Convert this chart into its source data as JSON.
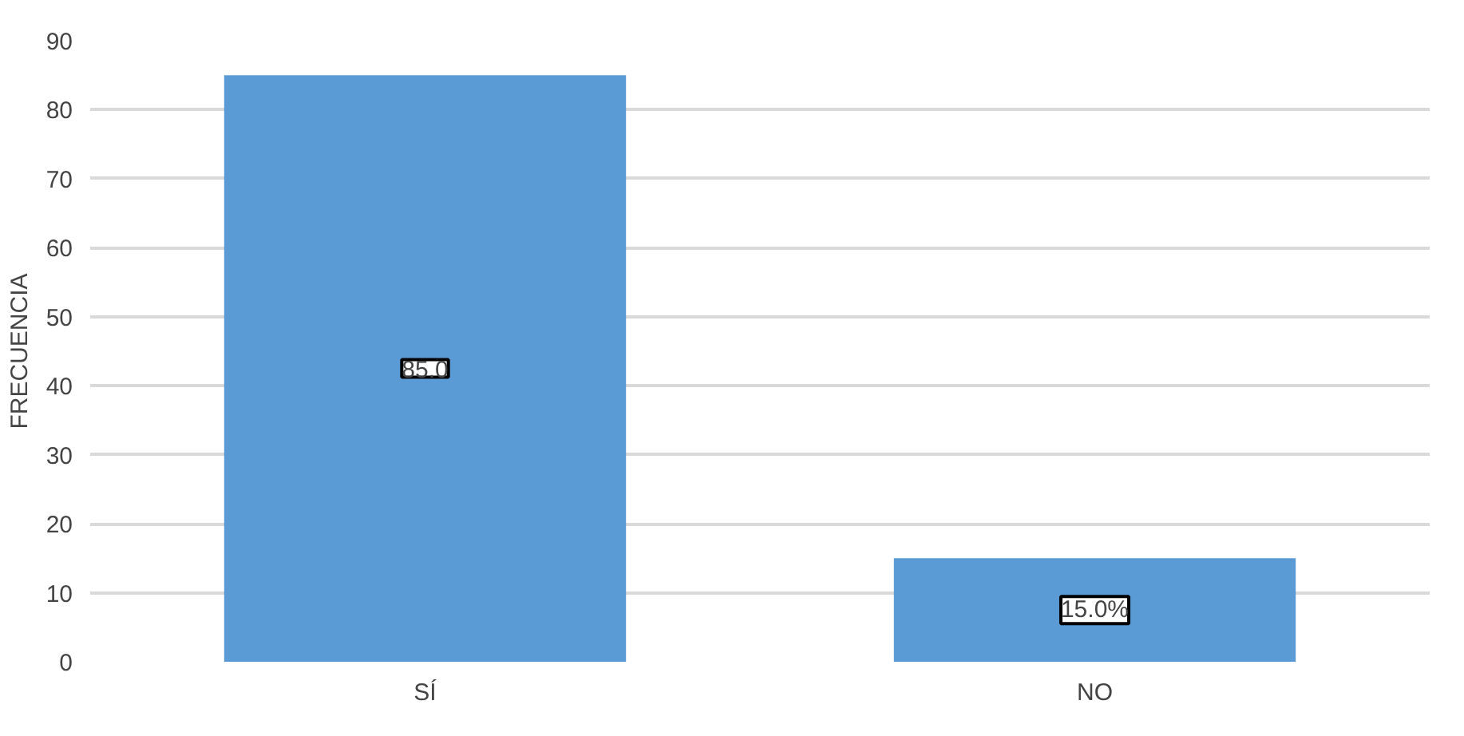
{
  "chart_data": {
    "type": "bar",
    "ylabel": "FRECUENCIA",
    "categories": [
      "SÍ",
      "NO"
    ],
    "values": [
      85,
      15
    ],
    "color": "#5b9bd5",
    "value_labels": [
      "85.0",
      "15.0%"
    ],
    "ylim": [
      0,
      90
    ],
    "yticks": [
      0,
      10,
      20,
      30,
      40,
      50,
      60,
      70,
      80,
      90
    ],
    "grid": "y"
  }
}
